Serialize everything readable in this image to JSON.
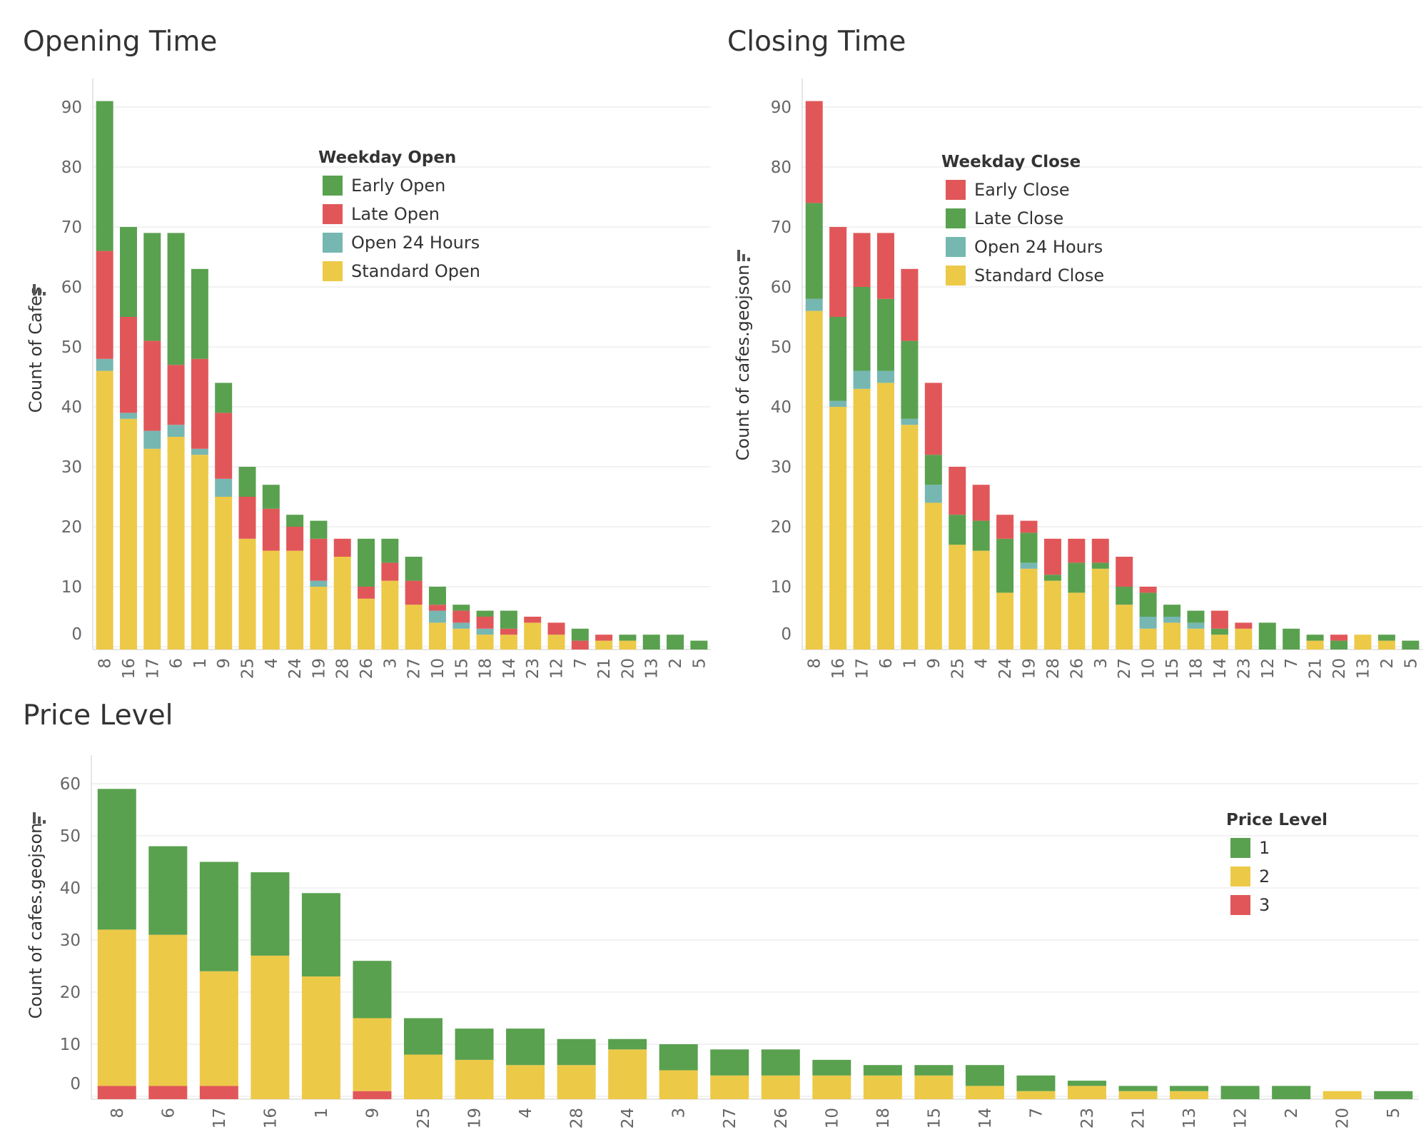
{
  "colors": {
    "green": "#59a14f",
    "red": "#e15759",
    "teal": "#76b7b2",
    "yellow": "#edc948",
    "grid": "#eeeeee",
    "axis": "#dddddd"
  },
  "icons": {
    "sort": "sort-bars-icon"
  },
  "chart_data": [
    {
      "type": "bar",
      "stacked": true,
      "title": "Opening Time",
      "ylabel": "Count of Cafes",
      "ylim": [
        0,
        90
      ],
      "yticks": [
        0,
        10,
        20,
        30,
        40,
        50,
        60,
        70,
        80,
        90
      ],
      "grid": true,
      "legend": {
        "title": "Weekday Open",
        "position": "top-center"
      },
      "categories": [
        "8",
        "16",
        "17",
        "6",
        "1",
        "9",
        "25",
        "4",
        "24",
        "19",
        "28",
        "26",
        "3",
        "27",
        "10",
        "15",
        "18",
        "14",
        "23",
        "12",
        "7",
        "21",
        "20",
        "13",
        "2",
        "5"
      ],
      "series": [
        {
          "name": "Standard Open",
          "color": "#edc948",
          "values": [
            46,
            38,
            33,
            35,
            32,
            25,
            18,
            16,
            16,
            10,
            15,
            8,
            11,
            7,
            4,
            3,
            2,
            2,
            4,
            2,
            0,
            1,
            1,
            0,
            0,
            0
          ]
        },
        {
          "name": "Open 24 Hours",
          "color": "#76b7b2",
          "values": [
            2,
            1,
            3,
            2,
            1,
            3,
            0,
            0,
            0,
            1,
            0,
            0,
            0,
            0,
            2,
            1,
            1,
            0,
            0,
            0,
            0,
            0,
            0,
            0,
            0,
            0
          ]
        },
        {
          "name": "Late Open",
          "color": "#e15759",
          "values": [
            18,
            16,
            15,
            10,
            15,
            11,
            7,
            7,
            4,
            7,
            3,
            2,
            3,
            4,
            1,
            2,
            2,
            1,
            1,
            2,
            1,
            1,
            0,
            0,
            0,
            0
          ]
        },
        {
          "name": "Early Open",
          "color": "#59a14f",
          "values": [
            25,
            15,
            18,
            22,
            15,
            5,
            5,
            4,
            2,
            3,
            0,
            8,
            4,
            4,
            3,
            1,
            1,
            3,
            0,
            0,
            2,
            0,
            1,
            2,
            2,
            1
          ]
        }
      ],
      "legend_order": [
        "Early Open",
        "Late Open",
        "Open 24 Hours",
        "Standard Open"
      ]
    },
    {
      "type": "bar",
      "stacked": true,
      "title": "Closing Time",
      "ylabel": "Count of cafes.geojson",
      "ylim": [
        0,
        90
      ],
      "yticks": [
        0,
        10,
        20,
        30,
        40,
        50,
        60,
        70,
        80,
        90
      ],
      "grid": true,
      "legend": {
        "title": "Weekday Close",
        "position": "top-right"
      },
      "categories": [
        "8",
        "16",
        "17",
        "6",
        "1",
        "9",
        "25",
        "4",
        "24",
        "19",
        "28",
        "26",
        "3",
        "27",
        "10",
        "15",
        "18",
        "14",
        "23",
        "12",
        "7",
        "21",
        "20",
        "13",
        "2",
        "5"
      ],
      "series": [
        {
          "name": "Standard Close",
          "color": "#edc948",
          "values": [
            56,
            40,
            43,
            44,
            37,
            24,
            17,
            16,
            9,
            13,
            11,
            9,
            13,
            7,
            3,
            4,
            3,
            2,
            3,
            0,
            0,
            1,
            0,
            2,
            1,
            0
          ]
        },
        {
          "name": "Open 24 Hours",
          "color": "#76b7b2",
          "values": [
            2,
            1,
            3,
            2,
            1,
            3,
            0,
            0,
            0,
            1,
            0,
            0,
            0,
            0,
            2,
            1,
            1,
            0,
            0,
            0,
            0,
            0,
            0,
            0,
            0,
            0
          ]
        },
        {
          "name": "Late Close",
          "color": "#59a14f",
          "values": [
            16,
            14,
            14,
            12,
            13,
            5,
            5,
            5,
            9,
            5,
            1,
            5,
            1,
            3,
            4,
            2,
            2,
            1,
            0,
            4,
            3,
            1,
            1,
            0,
            1,
            1
          ]
        },
        {
          "name": "Early Close",
          "color": "#e15759",
          "values": [
            17,
            15,
            9,
            11,
            12,
            12,
            8,
            6,
            4,
            2,
            6,
            4,
            4,
            5,
            1,
            0,
            0,
            3,
            1,
            0,
            0,
            0,
            1,
            0,
            0,
            0
          ]
        }
      ],
      "legend_order": [
        "Early Close",
        "Late Close",
        "Open 24 Hours",
        "Standard Close"
      ]
    },
    {
      "type": "bar",
      "stacked": true,
      "title": "Price Level",
      "ylabel": "Count of cafes.geojson",
      "ylim": [
        0,
        60
      ],
      "yticks": [
        0,
        10,
        20,
        30,
        40,
        50,
        60
      ],
      "grid": true,
      "legend": {
        "title": "Price Level",
        "position": "right"
      },
      "categories": [
        "8",
        "6",
        "17",
        "16",
        "1",
        "9",
        "25",
        "19",
        "4",
        "28",
        "24",
        "3",
        "27",
        "26",
        "10",
        "18",
        "15",
        "14",
        "7",
        "23",
        "21",
        "13",
        "12",
        "2",
        "20",
        "5"
      ],
      "series": [
        {
          "name": "3",
          "color": "#e15759",
          "values": [
            2,
            2,
            2,
            0,
            0,
            1,
            0,
            0,
            0,
            0,
            0,
            0,
            0,
            0,
            0,
            0,
            0,
            0,
            0,
            0,
            0,
            0,
            0,
            0,
            0,
            0
          ]
        },
        {
          "name": "2",
          "color": "#edc948",
          "values": [
            30,
            29,
            22,
            27,
            23,
            14,
            8,
            7,
            6,
            6,
            9,
            5,
            4,
            4,
            4,
            4,
            4,
            2,
            1,
            2,
            1,
            1,
            0,
            0,
            1,
            0
          ]
        },
        {
          "name": "1",
          "color": "#59a14f",
          "values": [
            27,
            17,
            21,
            16,
            16,
            11,
            7,
            6,
            7,
            5,
            2,
            5,
            5,
            5,
            3,
            2,
            2,
            4,
            3,
            1,
            1,
            1,
            2,
            2,
            0,
            1
          ]
        }
      ],
      "legend_order": [
        "1",
        "2",
        "3"
      ]
    }
  ]
}
